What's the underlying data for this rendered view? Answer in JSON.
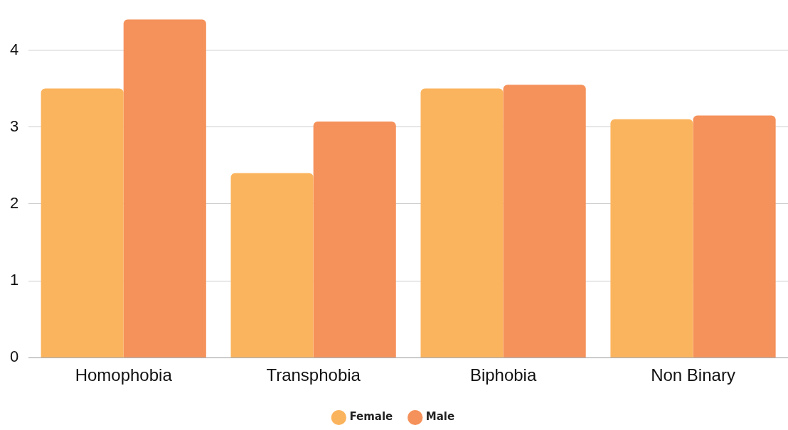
{
  "chart_data": {
    "type": "bar",
    "categories": [
      "Homophobia",
      "Transphobia",
      "Biphobia",
      "Non Binary"
    ],
    "series": [
      {
        "name": "Female",
        "color": "#fbb45e",
        "values": [
          3.5,
          2.4,
          3.5,
          3.1
        ]
      },
      {
        "name": "Male",
        "color": "#f5915a",
        "values": [
          4.4,
          3.07,
          3.55,
          3.15
        ]
      }
    ],
    "ylim": [
      0,
      4.4
    ],
    "yticks": [
      0,
      1,
      2,
      3,
      4
    ],
    "grid": "y",
    "legend": "bottom"
  }
}
